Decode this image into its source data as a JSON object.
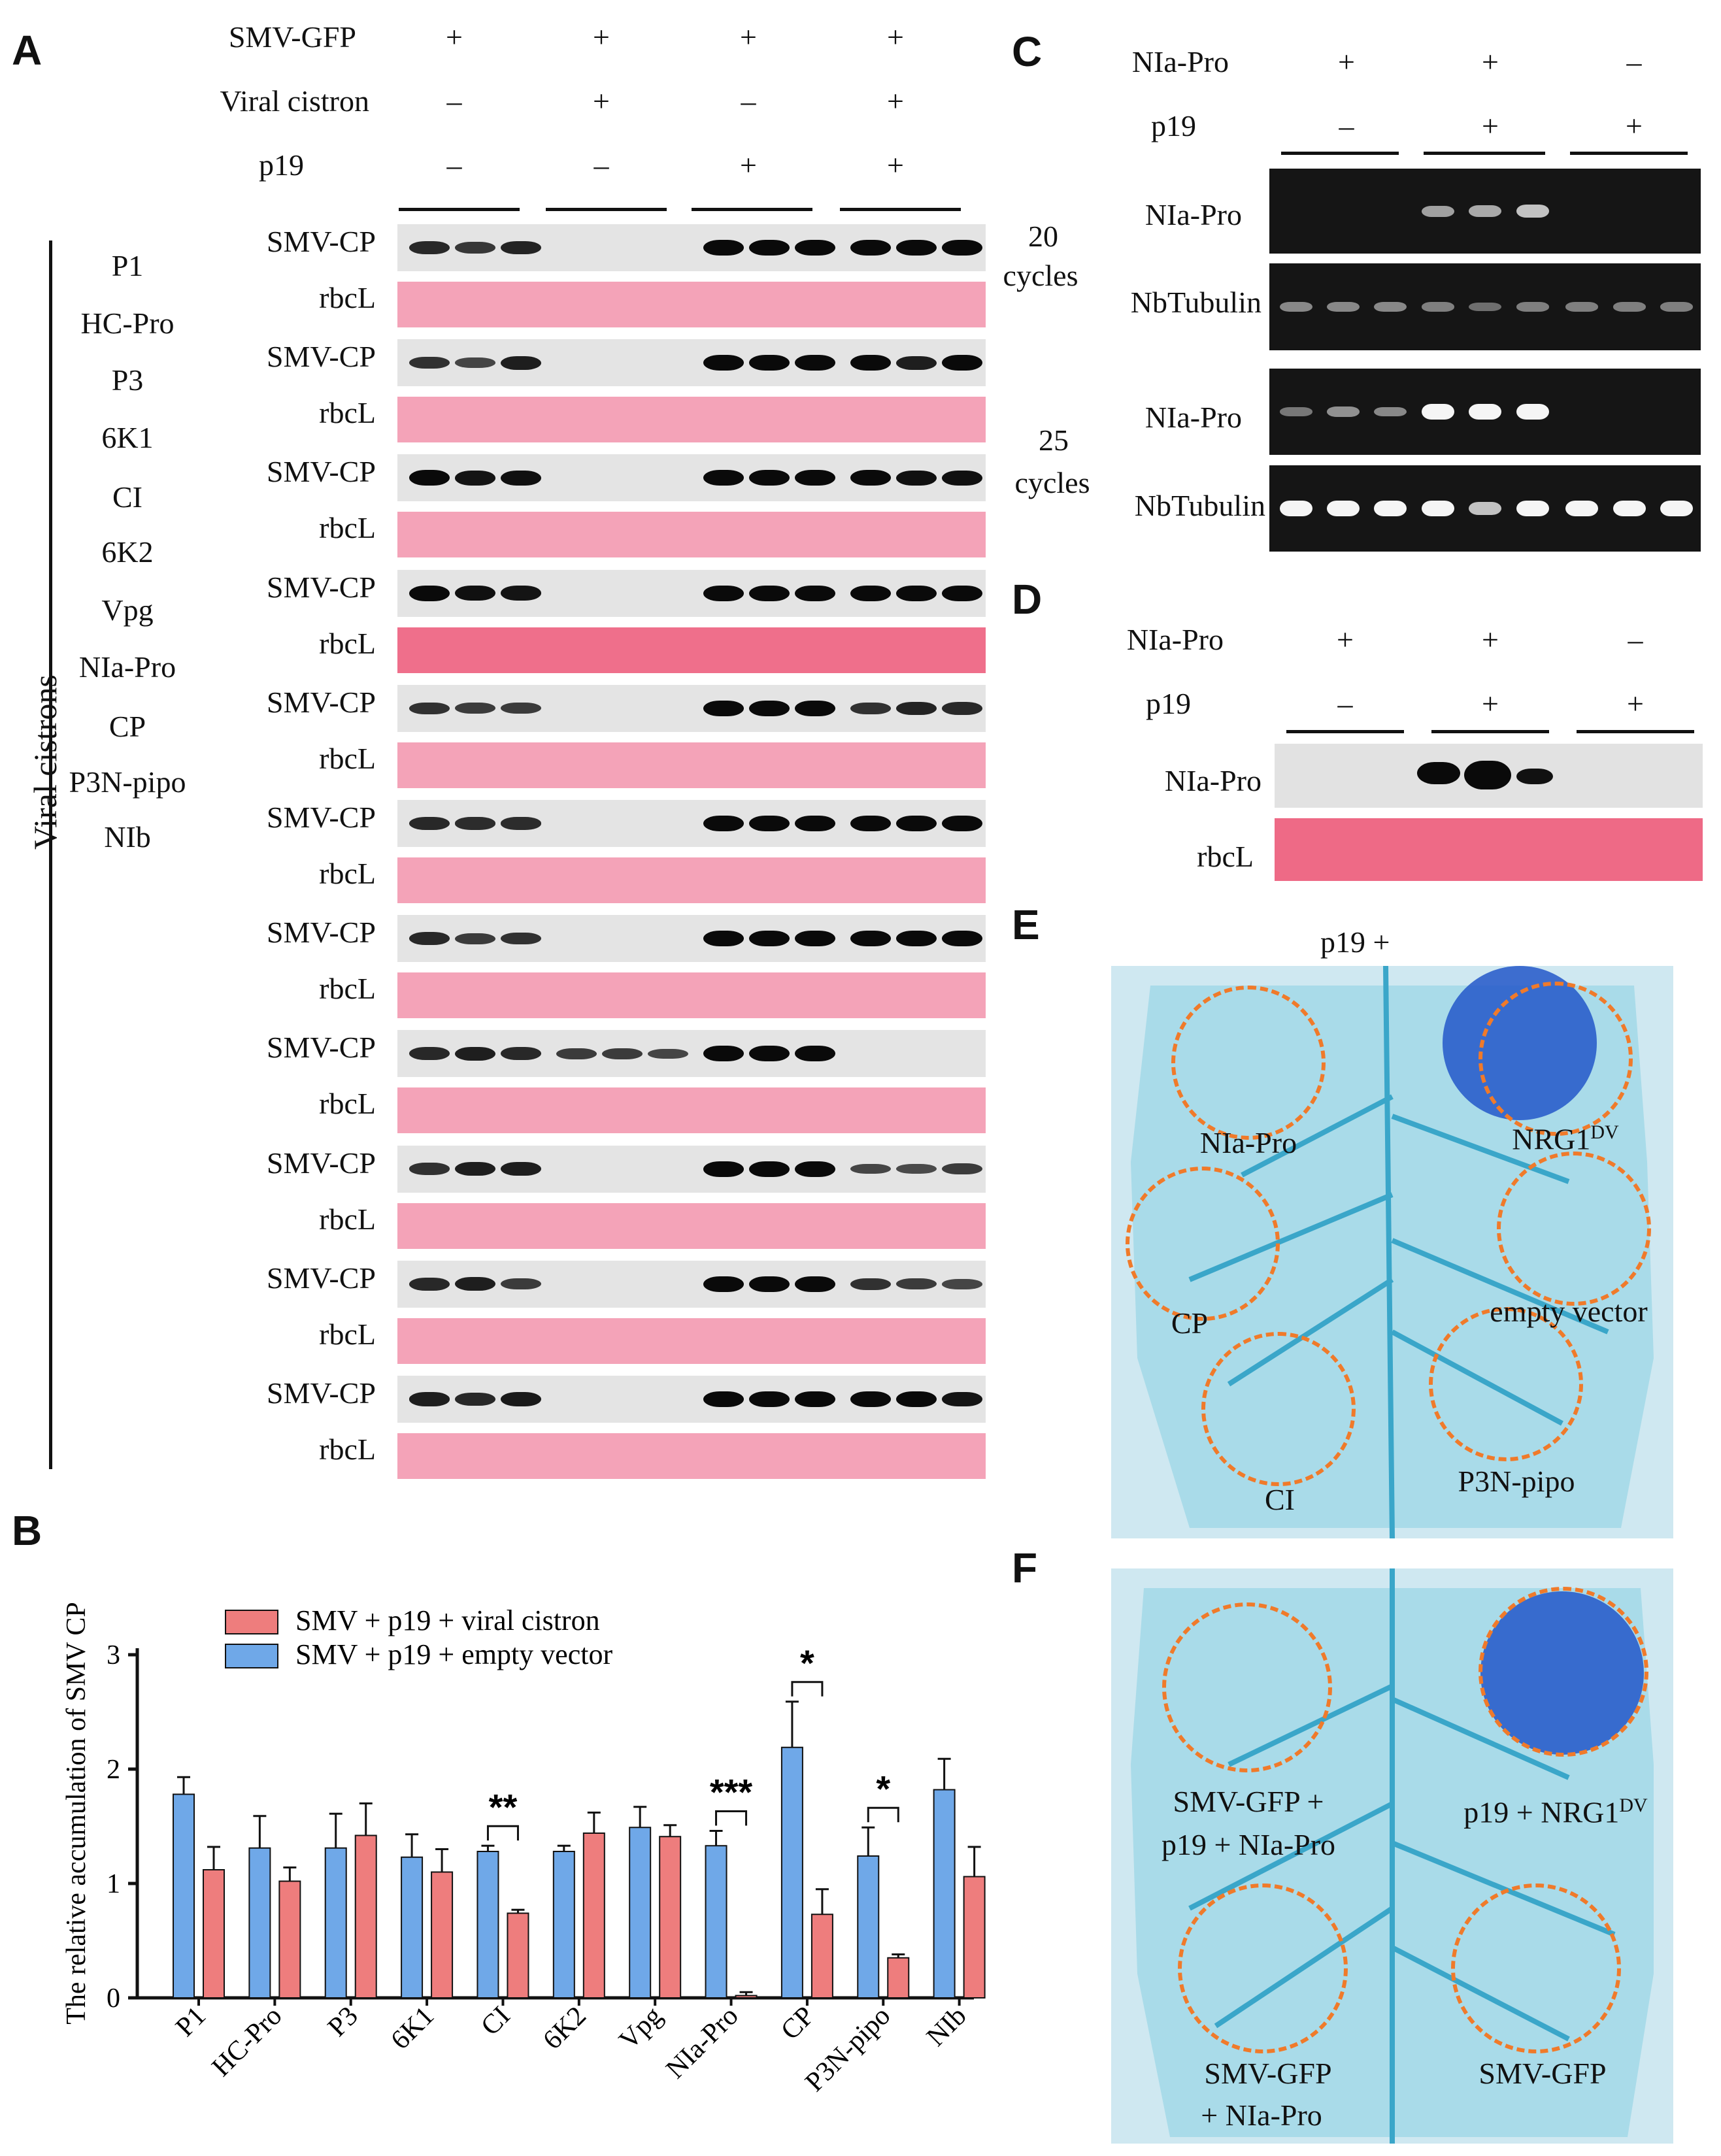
{
  "panels": {
    "A": "A",
    "B": "B",
    "C": "C",
    "D": "D",
    "E": "E",
    "F": "F"
  },
  "panelA": {
    "row_labels": [
      "SMV-GFP",
      "Viral cistron",
      "p19"
    ],
    "signs": [
      [
        "+",
        "+",
        "+",
        "+"
      ],
      [
        "–",
        "+",
        "–",
        "+"
      ],
      [
        "–",
        "–",
        "+",
        "+"
      ]
    ],
    "side_label": "Viral cistrons",
    "blot_label": "SMV-CP",
    "loading_label": "rbcL",
    "cistrons": [
      "P1",
      "HC-Pro",
      "P3",
      "6K1",
      "CI",
      "6K2",
      "Vpg",
      "NIa-Pro",
      "CP",
      "P3N-pipo",
      "NIb"
    ]
  },
  "panelC": {
    "row_labels": [
      "NIa-Pro",
      "p19"
    ],
    "signs": [
      [
        "+",
        "+",
        "–"
      ],
      [
        "–",
        "+",
        "+"
      ]
    ],
    "cycles20": [
      "20",
      "cycles"
    ],
    "cycles25": [
      "25",
      "cycles"
    ],
    "gel_labels": [
      "NIa-Pro",
      "NbTubulin",
      "NIa-Pro",
      "NbTubulin"
    ]
  },
  "panelD": {
    "row_labels": [
      "NIa-Pro",
      "p19"
    ],
    "signs": [
      [
        "+",
        "+",
        "–"
      ],
      [
        "–",
        "+",
        "+"
      ]
    ],
    "blot_labels": [
      "NIa-Pro",
      "rbcL"
    ]
  },
  "panelE": {
    "title": "p19 +",
    "spots": [
      "NIa-Pro",
      "NRG1",
      "DV",
      "CP",
      "empty vector",
      "CI",
      "P3N-pipo"
    ]
  },
  "panelF": {
    "spots": [
      "SMV-GFP +",
      "p19 + NIa-Pro",
      "p19 + NRG1",
      "DV",
      "SMV-GFP",
      "+ NIa-Pro",
      "SMV-GFP"
    ]
  },
  "chart_data": {
    "type": "bar",
    "title": "",
    "ylabel": "The relative accumulation of SMV CP",
    "xlabel": "",
    "ylim": [
      0,
      3
    ],
    "yticks": [
      "0",
      "1",
      "2",
      "3"
    ],
    "categories": [
      "P1",
      "HC-Pro",
      "P3",
      "6K1",
      "CI",
      "6K2",
      "Vpg",
      "NIa-Pro",
      "CP",
      "P3N-pipo",
      "NIb"
    ],
    "series": [
      {
        "name": "SMV + p19 + empty vector",
        "color": "#6fa8e8",
        "values": [
          1.78,
          1.31,
          1.31,
          1.23,
          1.28,
          1.28,
          1.49,
          1.33,
          2.19,
          1.24,
          1.82
        ],
        "errors": [
          0.15,
          0.28,
          0.3,
          0.2,
          0.05,
          0.05,
          0.18,
          0.13,
          0.4,
          0.25,
          0.27
        ]
      },
      {
        "name": "SMV + p19 + viral cistron",
        "color": "#ee7d7d",
        "values": [
          1.12,
          1.02,
          1.42,
          1.1,
          0.74,
          1.44,
          1.41,
          0.02,
          0.73,
          0.35,
          1.06
        ],
        "errors": [
          0.2,
          0.12,
          0.28,
          0.2,
          0.03,
          0.18,
          0.1,
          0.03,
          0.22,
          0.03,
          0.26
        ]
      }
    ],
    "significance": [
      {
        "category": "CI",
        "label": "**"
      },
      {
        "category": "NIa-Pro",
        "label": "***"
      },
      {
        "category": "CP",
        "label": "*"
      },
      {
        "category": "P3N-pipo",
        "label": "*"
      }
    ],
    "legend": "top-center"
  }
}
